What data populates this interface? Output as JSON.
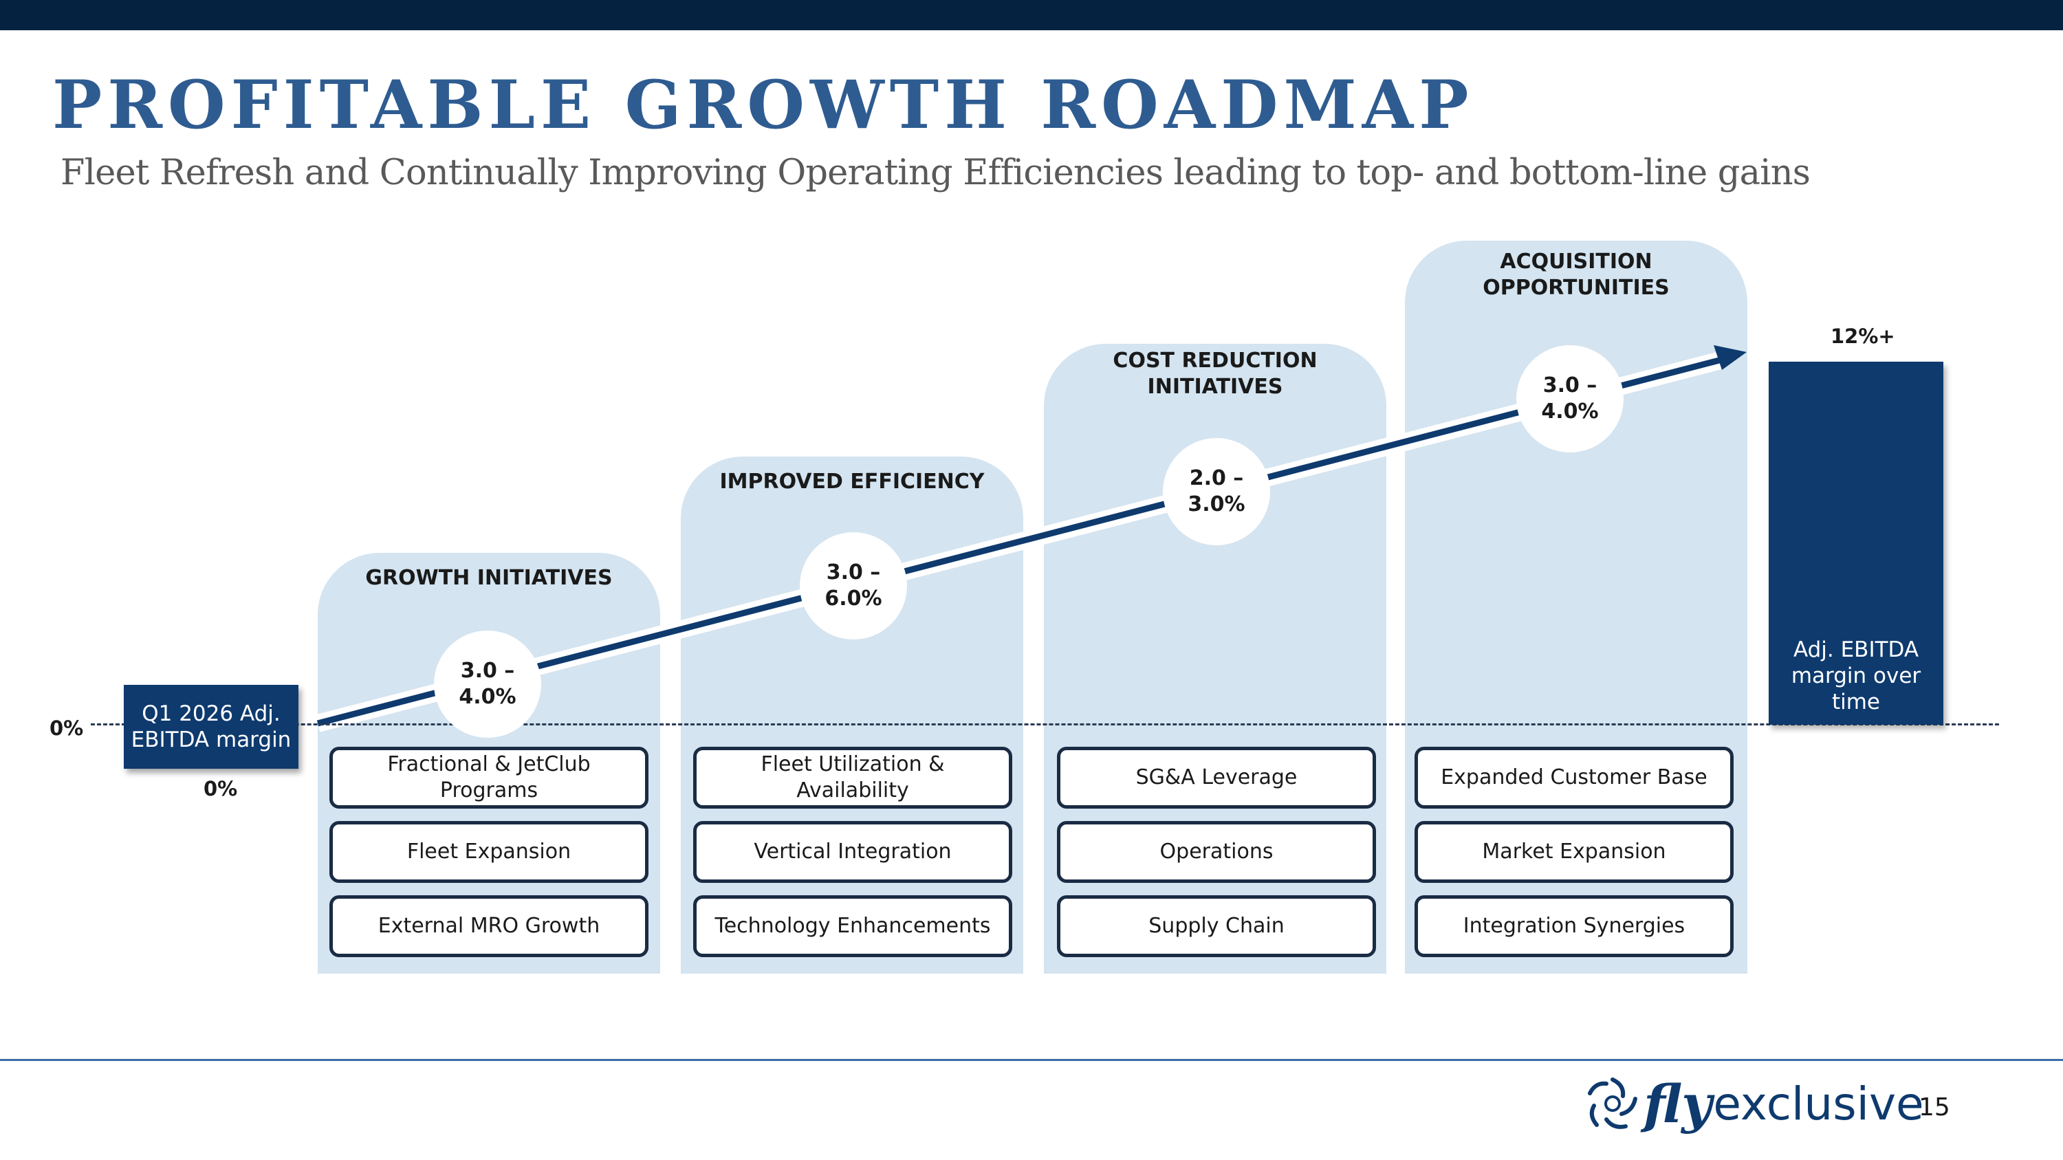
{
  "header": {
    "title": "PROFITABLE GROWTH ROADMAP",
    "subtitle": "Fleet Refresh and Continually Improving Operating Efficiencies leading to top- and bottom-line gains"
  },
  "start": {
    "axis_label": "0%",
    "box_label": "Q1 2026 Adj. EBITDA margin",
    "value_label": "0%"
  },
  "end": {
    "value_label": "12%+",
    "bar_label": "Adj. EBITDA margin over time"
  },
  "columns": [
    {
      "title": "GROWTH INITIATIVES",
      "range": "3.0 – 4.0%",
      "items": [
        "Fractional & JetClub Programs",
        "Fleet Expansion",
        "External MRO Growth"
      ]
    },
    {
      "title": "IMPROVED EFFICIENCY",
      "range": "3.0 – 6.0%",
      "items": [
        "Fleet Utilization & Availability",
        "Vertical Integration",
        "Technology Enhancements"
      ]
    },
    {
      "title": "COST REDUCTION INITIATIVES",
      "range": "2.0 – 3.0%",
      "items": [
        "SG&A Leverage",
        "Operations",
        "Supply Chain"
      ]
    },
    {
      "title": "ACQUISITION OPPORTUNITIES",
      "range": "3.0 – 4.0%",
      "items": [
        "Expanded Customer Base",
        "Market Expansion",
        "Integration Synergies"
      ]
    }
  ],
  "footer": {
    "logo_fly": "fly",
    "logo_exclusive": "exclusive",
    "page_number": "15"
  },
  "colors": {
    "navy": "#0e3a6e",
    "column_fill": "#d4e4f0",
    "title": "#2e5c91"
  },
  "icons": {
    "logo_mark": "swirl-logo-icon"
  }
}
